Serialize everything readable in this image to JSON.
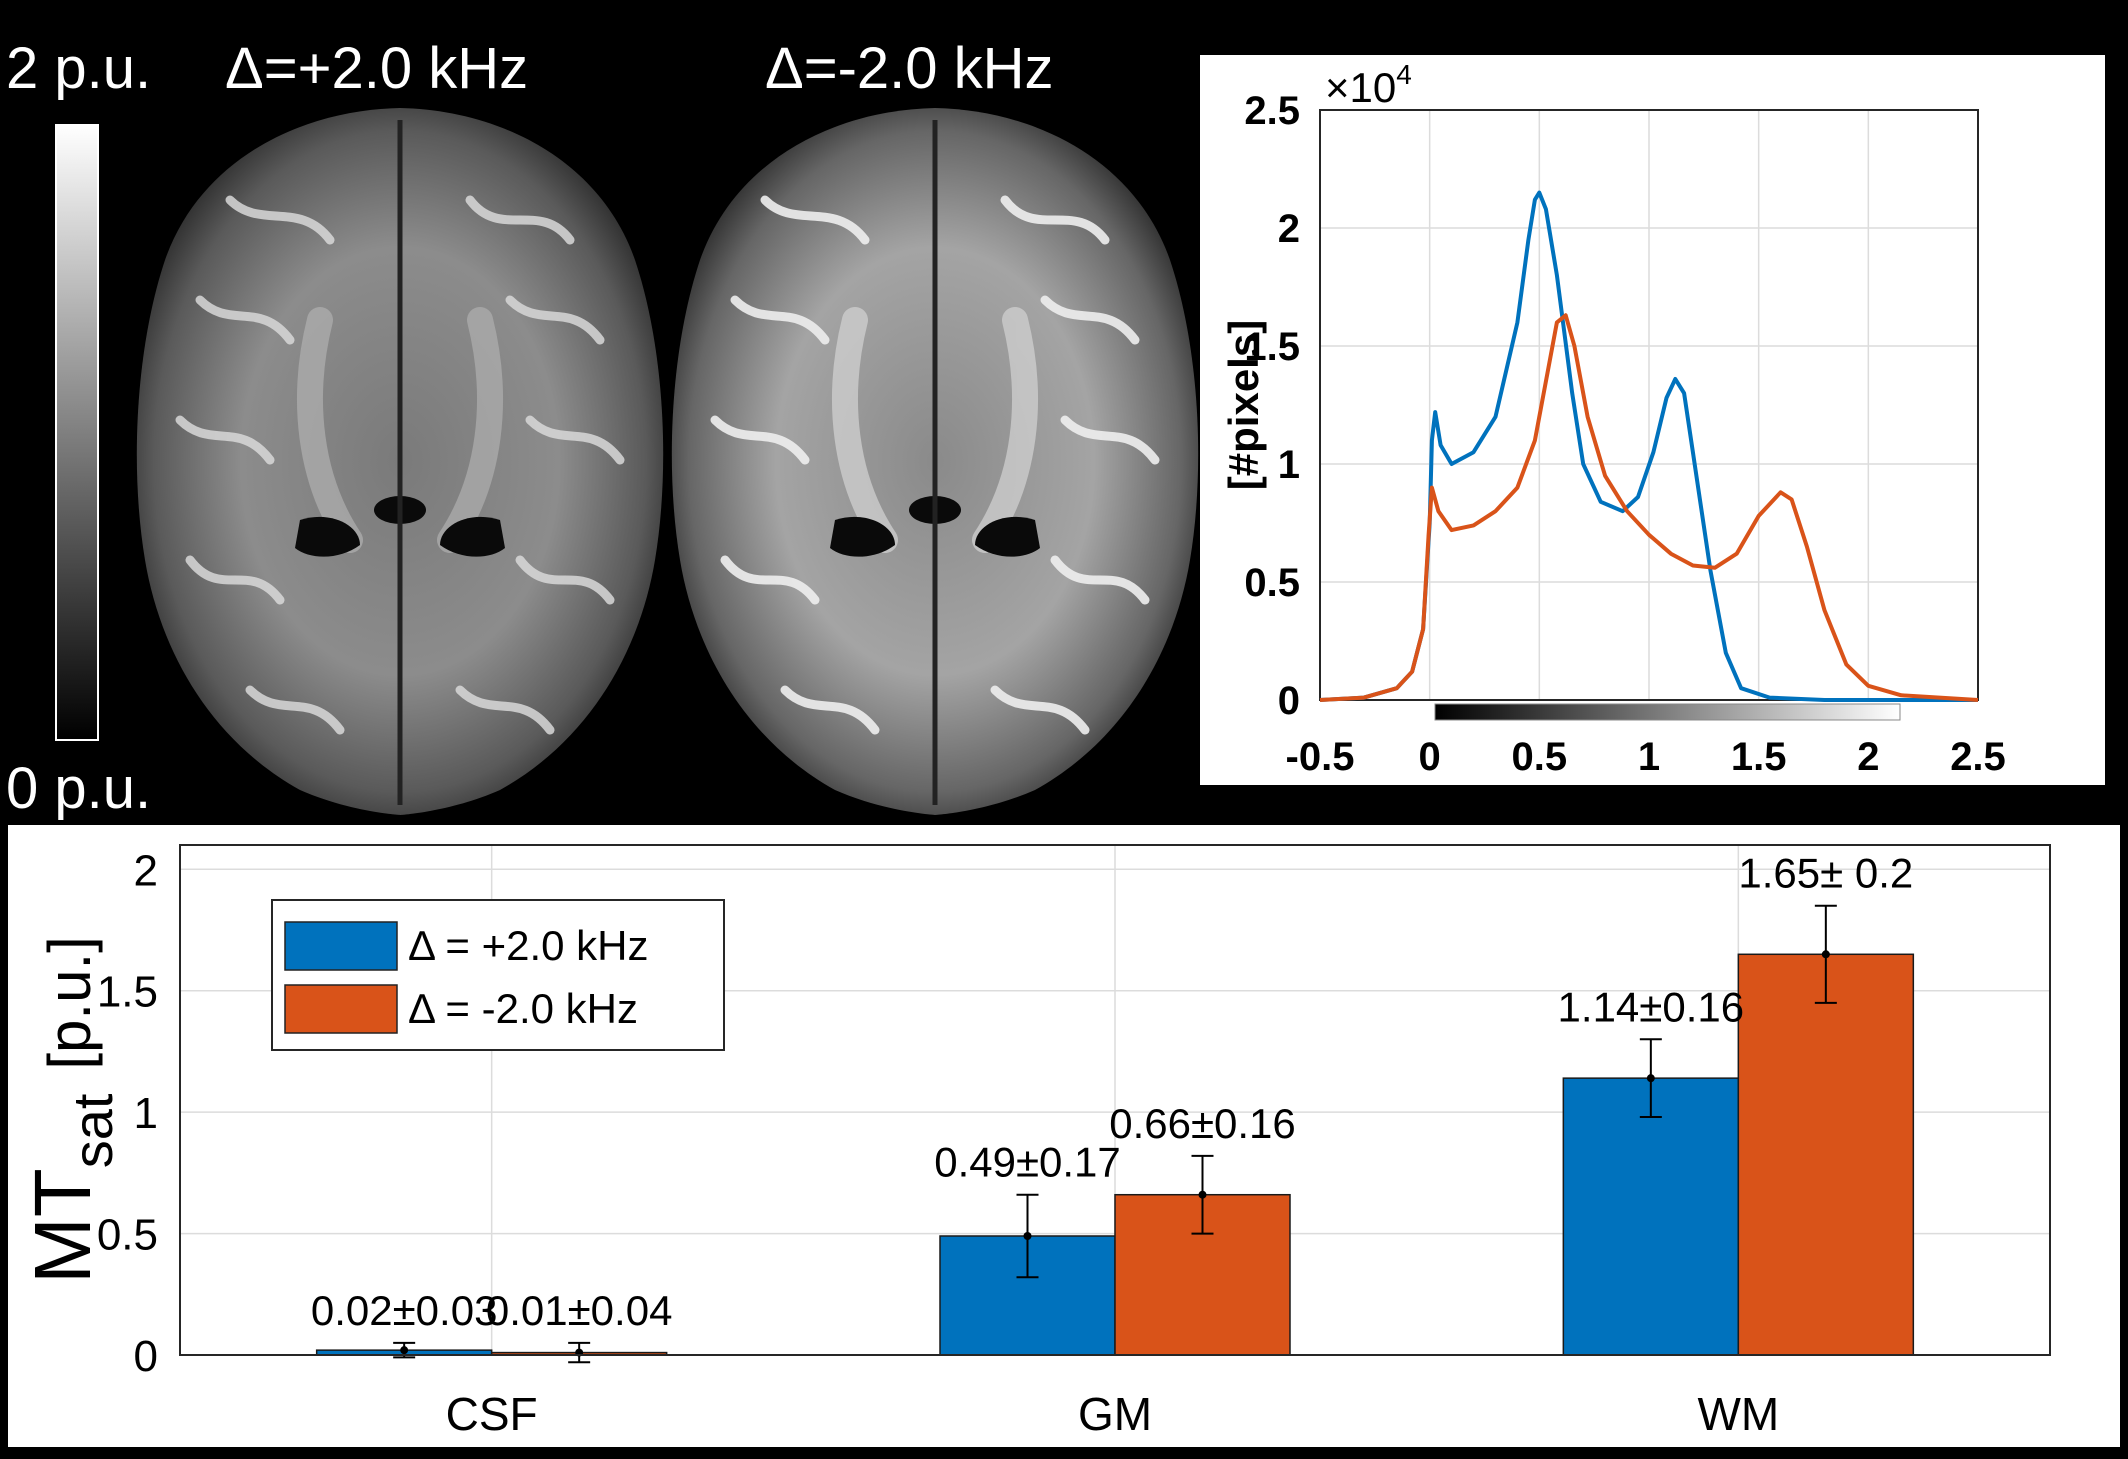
{
  "colors": {
    "background": "#000000",
    "plus": "#0072BD",
    "minus": "#D95319",
    "grid": "#dcdcdc"
  },
  "colorbar": {
    "top_label": "2 p.u.",
    "bottom_label": "0 p.u."
  },
  "maps": {
    "left_title": "Δ=+2.0 kHz",
    "right_title": "Δ=-2.0 kHz"
  },
  "chart_data": [
    {
      "type": "line",
      "xlabel": "",
      "ylabel": "[#pixels]",
      "exponent": "×10",
      "exponent_power": "4",
      "xlim": [
        -0.5,
        2.5
      ],
      "ylim": [
        0,
        2.5
      ],
      "xticks": [
        -0.5,
        0,
        0.5,
        1,
        1.5,
        2,
        2.5
      ],
      "xtick_labels": [
        "-0.5",
        "0",
        "0.5",
        "1",
        "1.5",
        "2",
        "2.5"
      ],
      "yticks": [
        0,
        0.5,
        1,
        1.5,
        2,
        2.5
      ],
      "ytick_labels": [
        "0",
        "0.5",
        "1",
        "1.5",
        "2",
        "2.5"
      ],
      "grid": true,
      "colorbar_range": [
        0,
        2
      ],
      "series": [
        {
          "color": "#0072BD",
          "points": [
            [
              -0.5,
              0
            ],
            [
              -0.3,
              0.01
            ],
            [
              -0.15,
              0.05
            ],
            [
              -0.08,
              0.12
            ],
            [
              -0.03,
              0.3
            ],
            [
              0.0,
              0.75
            ],
            [
              0.01,
              1.1
            ],
            [
              0.025,
              1.22
            ],
            [
              0.05,
              1.08
            ],
            [
              0.1,
              1.0
            ],
            [
              0.2,
              1.05
            ],
            [
              0.3,
              1.2
            ],
            [
              0.4,
              1.6
            ],
            [
              0.45,
              1.95
            ],
            [
              0.48,
              2.12
            ],
            [
              0.5,
              2.15
            ],
            [
              0.53,
              2.08
            ],
            [
              0.58,
              1.8
            ],
            [
              0.65,
              1.3
            ],
            [
              0.7,
              1.0
            ],
            [
              0.78,
              0.84
            ],
            [
              0.88,
              0.8
            ],
            [
              0.95,
              0.86
            ],
            [
              1.02,
              1.05
            ],
            [
              1.08,
              1.28
            ],
            [
              1.12,
              1.36
            ],
            [
              1.16,
              1.3
            ],
            [
              1.2,
              1.05
            ],
            [
              1.28,
              0.55
            ],
            [
              1.35,
              0.2
            ],
            [
              1.42,
              0.05
            ],
            [
              1.55,
              0.01
            ],
            [
              1.8,
              0
            ],
            [
              2.5,
              0
            ]
          ]
        },
        {
          "color": "#D95319",
          "points": [
            [
              -0.5,
              0
            ],
            [
              -0.3,
              0.01
            ],
            [
              -0.15,
              0.05
            ],
            [
              -0.08,
              0.12
            ],
            [
              -0.03,
              0.3
            ],
            [
              -0.005,
              0.7
            ],
            [
              0.01,
              0.9
            ],
            [
              0.04,
              0.8
            ],
            [
              0.1,
              0.72
            ],
            [
              0.2,
              0.74
            ],
            [
              0.3,
              0.8
            ],
            [
              0.4,
              0.9
            ],
            [
              0.48,
              1.1
            ],
            [
              0.54,
              1.4
            ],
            [
              0.58,
              1.6
            ],
            [
              0.62,
              1.63
            ],
            [
              0.66,
              1.5
            ],
            [
              0.72,
              1.2
            ],
            [
              0.8,
              0.95
            ],
            [
              0.9,
              0.8
            ],
            [
              1.0,
              0.7
            ],
            [
              1.1,
              0.62
            ],
            [
              1.2,
              0.57
            ],
            [
              1.3,
              0.56
            ],
            [
              1.4,
              0.62
            ],
            [
              1.5,
              0.78
            ],
            [
              1.6,
              0.88
            ],
            [
              1.65,
              0.85
            ],
            [
              1.72,
              0.65
            ],
            [
              1.8,
              0.38
            ],
            [
              1.9,
              0.15
            ],
            [
              2.0,
              0.06
            ],
            [
              2.15,
              0.02
            ],
            [
              2.5,
              0
            ]
          ]
        }
      ]
    },
    {
      "type": "bar",
      "categories": [
        "CSF",
        "GM",
        "WM"
      ],
      "ylabel_main": "MT",
      "ylabel_sub": "sat",
      "ylabel_unit": "[p.u.]",
      "ylim": [
        0,
        2.1
      ],
      "yticks": [
        0,
        0.5,
        1,
        1.5,
        2
      ],
      "ytick_labels": [
        "0",
        "0.5",
        "1",
        "1.5",
        "2"
      ],
      "grid": true,
      "legend_position": "top-left",
      "series": [
        {
          "name": "Δ = +2.0 kHz",
          "color": "#0072BD",
          "values": [
            0.02,
            0.49,
            1.14
          ],
          "errors": [
            0.03,
            0.17,
            0.16
          ],
          "labels": [
            "0.02±0.03",
            "0.49±0.17",
            "1.14±0.16"
          ]
        },
        {
          "name": "Δ = -2.0 kHz",
          "color": "#D95319",
          "values": [
            0.01,
            0.66,
            1.65
          ],
          "errors": [
            0.04,
            0.16,
            0.2
          ],
          "labels": [
            "0.01±0.04",
            "0.66±0.16",
            "1.65± 0.2"
          ]
        }
      ]
    }
  ]
}
